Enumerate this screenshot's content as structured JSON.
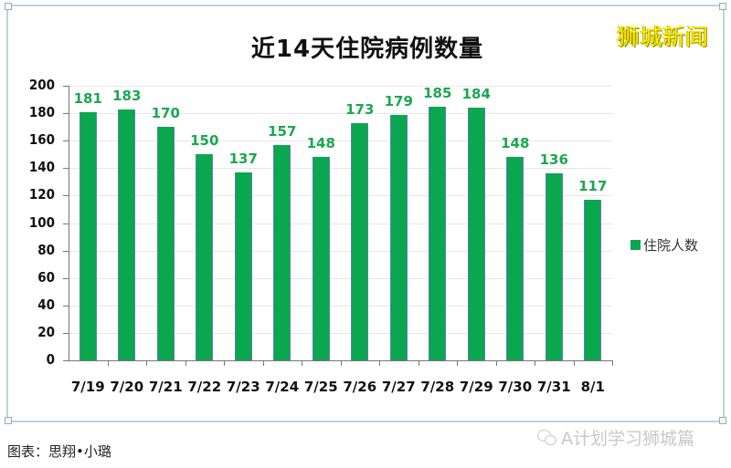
{
  "chart_data": {
    "type": "bar",
    "title": "近14天住院病例数量",
    "categories": [
      "7/19",
      "7/20",
      "7/21",
      "7/22",
      "7/23",
      "7/24",
      "7/25",
      "7/26",
      "7/27",
      "7/28",
      "7/29",
      "7/30",
      "7/31",
      "8/1"
    ],
    "series": [
      {
        "name": "住院人数",
        "color": "#0aa74f",
        "values": [
          181,
          183,
          170,
          150,
          137,
          157,
          148,
          173,
          179,
          185,
          184,
          148,
          136,
          117
        ]
      }
    ],
    "xlabel": "",
    "ylabel": "",
    "ylim": [
      0,
      200
    ],
    "yticks": [
      0,
      20,
      40,
      60,
      80,
      100,
      120,
      140,
      160,
      180,
      200
    ],
    "grid": true,
    "legend_position": "right",
    "data_labels": true
  },
  "brand": "狮城新闻",
  "caption": "图表：思翔•小璐",
  "watermark": "A计划学习狮城篇",
  "colors": {
    "bar": "#0aa74f",
    "label": "#1aa84f",
    "brand": "#ffee00"
  }
}
